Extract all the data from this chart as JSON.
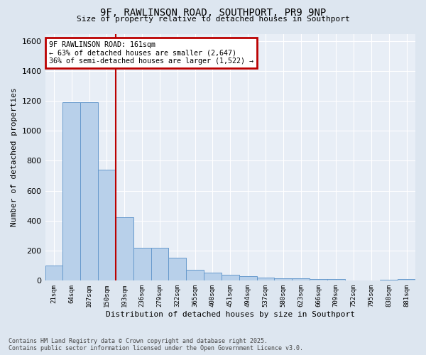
{
  "title": "9F, RAWLINSON ROAD, SOUTHPORT, PR9 9NP",
  "subtitle": "Size of property relative to detached houses in Southport",
  "xlabel": "Distribution of detached houses by size in Southport",
  "ylabel": "Number of detached properties",
  "footer_line1": "Contains HM Land Registry data © Crown copyright and database right 2025.",
  "footer_line2": "Contains public sector information licensed under the Open Government Licence v3.0.",
  "categories": [
    "21sqm",
    "64sqm",
    "107sqm",
    "150sqm",
    "193sqm",
    "236sqm",
    "279sqm",
    "322sqm",
    "365sqm",
    "408sqm",
    "451sqm",
    "494sqm",
    "537sqm",
    "580sqm",
    "623sqm",
    "666sqm",
    "709sqm",
    "752sqm",
    "795sqm",
    "838sqm",
    "881sqm"
  ],
  "values": [
    100,
    1190,
    1190,
    740,
    420,
    220,
    220,
    150,
    70,
    50,
    35,
    30,
    20,
    15,
    12,
    10,
    8,
    0,
    0,
    5,
    8
  ],
  "bar_color": "#b8d0ea",
  "bar_edge_color": "#6699cc",
  "background_color": "#dde6f0",
  "plot_bg_color": "#e8eef6",
  "grid_color": "#ffffff",
  "annotation_line1": "9F RAWLINSON ROAD: 161sqm",
  "annotation_line2": "← 63% of detached houses are smaller (2,647)",
  "annotation_line3": "36% of semi-detached houses are larger (1,522) →",
  "vline_x_index": 3.5,
  "vline_color": "#bb0000",
  "annotation_box_color": "#bb0000",
  "ylim": [
    0,
    1650
  ],
  "yticks": [
    0,
    200,
    400,
    600,
    800,
    1000,
    1200,
    1400,
    1600
  ]
}
